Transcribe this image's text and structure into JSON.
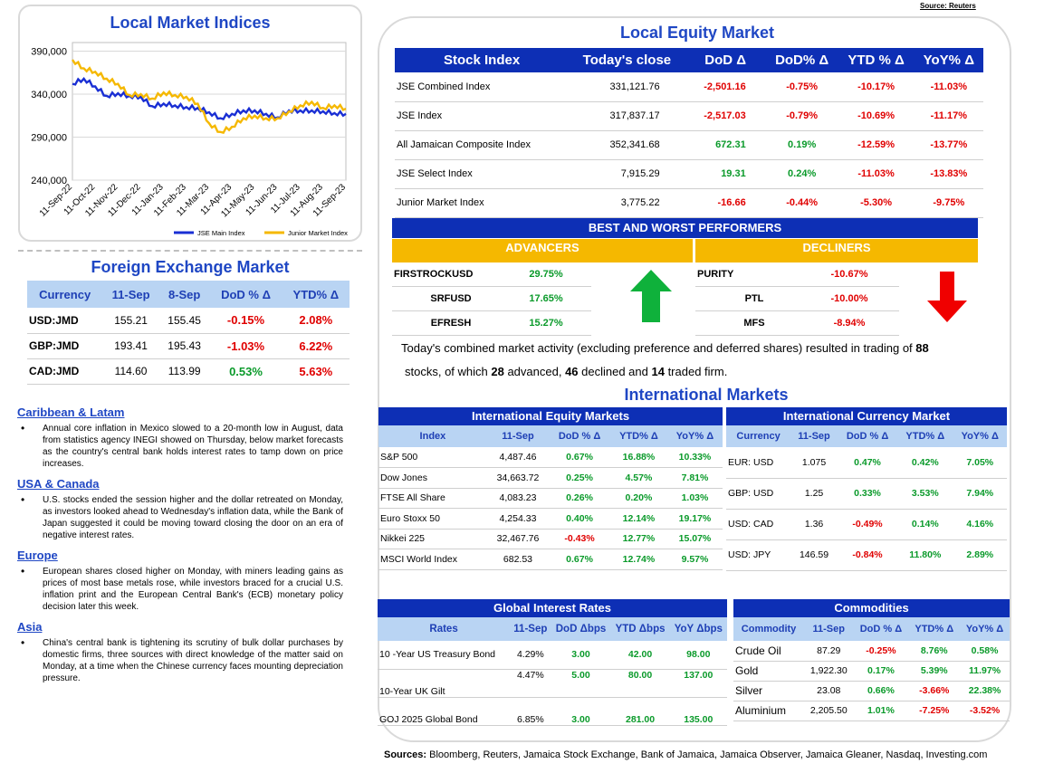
{
  "source_top": "Source: Reuters",
  "chart": {
    "title": "Local Market Indices",
    "chart_data": {
      "type": "line",
      "title": "Local Market Indices",
      "x_ticks": [
        "11-Sep-22",
        "11-Oct-22",
        "11-Nov-22",
        "11-Dec-22",
        "11-Jan-23",
        "11-Feb-23",
        "11-Mar-23",
        "11-Apr-23",
        "11-May-23",
        "11-Jun-23",
        "11-Jul-23",
        "11-Aug-23",
        "11-Sep-23"
      ],
      "y_ticks": [
        "390,000",
        "340,000",
        "290,000",
        "240,000"
      ],
      "ylim": [
        240000,
        400000
      ],
      "series": [
        {
          "name": "JSE Main Index",
          "color": "#1a2fd4",
          "values": [
            352000,
            358000,
            349000,
            338000,
            341000,
            338000,
            337000,
            326000,
            329000,
            327000,
            325000,
            324000,
            319000,
            312000,
            317000,
            321000,
            321000,
            317000,
            313000,
            321000,
            321000,
            321000,
            320000,
            318000,
            317000
          ]
        },
        {
          "name": "Junior Market Index",
          "color": "#f5b800",
          "values": [
            380000,
            370000,
            366000,
            358000,
            352000,
            339000,
            340000,
            335000,
            342000,
            339000,
            337000,
            329000,
            306000,
            296000,
            302000,
            312000,
            315000,
            312000,
            312000,
            320000,
            327000,
            331000,
            324000,
            327000,
            323000
          ]
        }
      ]
    }
  },
  "fx": {
    "title": "Foreign Exchange Market",
    "headers": [
      "Currency",
      "11-Sep",
      "8-Sep",
      "DoD % Δ",
      "YTD% Δ"
    ],
    "rows": [
      [
        "USD:JMD",
        "155.21",
        "155.45",
        "-0.15%",
        "2.08%"
      ],
      [
        "GBP:JMD",
        "193.41",
        "195.43",
        "-1.03%",
        "6.22%"
      ],
      [
        "CAD:JMD",
        "114.60",
        "113.99",
        "0.53%",
        "5.63%"
      ]
    ]
  },
  "news": [
    {
      "heading": "Caribbean & Latam",
      "text": "Annual core inflation in Mexico slowed to a 20-month low in August, data from statistics agency INEGI showed on Thursday, below market forecasts as the country's central bank holds interest rates to tamp down on price increases."
    },
    {
      "heading": "USA & Canada",
      "text": "U.S. stocks ended the session higher and the dollar retreated on Monday, as investors looked ahead to Wednesday's inflation data, while the Bank of Japan suggested it could be moving toward closing the door on an era of negative interest rates."
    },
    {
      "heading": "Europe",
      "text": "European shares closed higher on Monday, with miners leading gains as prices of most base metals rose, while investors braced for a crucial U.S. inflation print and the European Central Bank's (ECB) monetary policy decision later this week."
    },
    {
      "heading": "Asia",
      "text": "China's central bank is tightening its scrutiny of bulk dollar purchases by domestic firms, three sources with direct knowledge of the matter said on Monday, at a time when the Chinese currency faces mounting depreciation pressure."
    }
  ],
  "equity": {
    "title": "Local Equity Market",
    "headers": [
      "Stock Index",
      "Today's close",
      "DoD  Δ",
      "DoD% Δ",
      "YTD % Δ",
      "YoY% Δ"
    ],
    "rows": [
      [
        "JSE Combined Index",
        "331,121.76",
        "-2,501.16",
        "-0.75%",
        "-10.17%",
        "-11.03%"
      ],
      [
        "JSE Index",
        "317,837.17",
        "-2,517.03",
        "-0.79%",
        "-10.69%",
        "-11.17%"
      ],
      [
        "All Jamaican Composite Index",
        "352,341.68",
        "672.31",
        "0.19%",
        "-12.59%",
        "-13.77%"
      ],
      [
        "JSE Select Index",
        "7,915.29",
        "19.31",
        "0.24%",
        "-11.03%",
        "-13.83%"
      ],
      [
        "Junior Market Index",
        "3,775.22",
        "-16.66",
        "-0.44%",
        "-5.30%",
        "-9.75%"
      ]
    ]
  },
  "performers": {
    "title": "BEST AND WORST PERFORMERS",
    "adv_label": "ADVANCERS",
    "dec_label": "DECLINERS",
    "advancers": [
      [
        "FIRSTROCKUSD",
        "29.75%"
      ],
      [
        "SRFUSD",
        "17.65%"
      ],
      [
        "EFRESH",
        "15.27%"
      ]
    ],
    "decliners": [
      [
        "PURITY",
        "-10.67%"
      ],
      [
        "PTL",
        "-10.00%"
      ],
      [
        "MFS",
        "-8.94%"
      ]
    ]
  },
  "summary": {
    "p1": "Today's combined market activity (excluding preference and deferred shares) resulted in trading of ",
    "n1": "88",
    "p2": "stocks, of which ",
    "n2": "28",
    "p3": " advanced, ",
    "n3": "46",
    "p4": " declined and ",
    "n4": "14",
    "p5": " traded firm."
  },
  "intl_title": "International Markets",
  "ieq": {
    "title": "International Equity Markets",
    "headers": [
      "Index",
      "11-Sep",
      "DoD % Δ",
      "YTD% Δ",
      "YoY% Δ"
    ],
    "rows": [
      [
        "S&P 500",
        "4,487.46",
        "0.67%",
        "16.88%",
        "10.33%"
      ],
      [
        "Dow Jones",
        "34,663.72",
        "0.25%",
        "4.57%",
        "7.81%"
      ],
      [
        "FTSE All Share",
        "4,083.23",
        "0.26%",
        "0.20%",
        "1.03%"
      ],
      [
        "Euro Stoxx 50",
        "4,254.33",
        "0.40%",
        "12.14%",
        "19.17%"
      ],
      [
        "Nikkei 225",
        "32,467.76",
        "-0.43%",
        "12.77%",
        "15.07%"
      ],
      [
        "MSCI World Index",
        "682.53",
        "0.67%",
        "12.74%",
        "9.57%"
      ]
    ]
  },
  "icur": {
    "title": "International Currency Market",
    "headers": [
      "Currency",
      "11-Sep",
      "DoD % Δ",
      "YTD% Δ",
      "YoY% Δ"
    ],
    "rows": [
      [
        "EUR: USD",
        "1.075",
        "0.47%",
        "0.42%",
        "7.05%"
      ],
      [
        "GBP: USD",
        "1.25",
        "0.33%",
        "3.53%",
        "7.94%"
      ],
      [
        "USD: CAD",
        "1.36",
        "-0.49%",
        "0.14%",
        "4.16%"
      ],
      [
        "USD: JPY",
        "146.59",
        "-0.84%",
        "11.80%",
        "2.89%"
      ]
    ]
  },
  "rates": {
    "title": "Global Interest Rates",
    "headers": [
      "Rates",
      "11-Sep",
      "DoD Δbps",
      "YTD Δbps",
      "YoY Δbps"
    ],
    "rows": [
      [
        "10 -Year US Treasury Bond",
        "4.29%",
        "3.00",
        "42.00",
        "98.00"
      ],
      [
        "10-Year UK Gilt",
        "4.47%",
        "5.00",
        "80.00",
        "137.00"
      ],
      [
        "GOJ 2025 Global Bond",
        "6.85%",
        "3.00",
        "281.00",
        "135.00"
      ]
    ]
  },
  "comm": {
    "title": "Commodities",
    "headers": [
      "Commodity",
      "11-Sep",
      "DoD % Δ",
      "YTD% Δ",
      "YoY% Δ"
    ],
    "rows": [
      [
        "Crude Oil",
        "87.29",
        "-0.25%",
        "8.76%",
        "0.58%"
      ],
      [
        "Gold",
        "1,922.30",
        "0.17%",
        "5.39%",
        "11.97%"
      ],
      [
        "Silver",
        "23.08",
        "0.66%",
        "-3.66%",
        "22.38%"
      ],
      [
        "Aluminium",
        "2,205.50",
        "1.01%",
        "-7.25%",
        "-3.52%"
      ]
    ]
  },
  "sources_label": "Sources:",
  "sources_text": " Bloomberg, Reuters, Jamaica Stock Exchange, Bank of Jamaica, Jamaica Observer, Jamaica Gleaner, Nasdaq, Investing.com",
  "colors": {
    "navy": "#0d2fb5",
    "lightblue": "#b9d4f3",
    "gold": "#f5b800",
    "positive": "#0a9a2a",
    "negative": "#e00000"
  }
}
